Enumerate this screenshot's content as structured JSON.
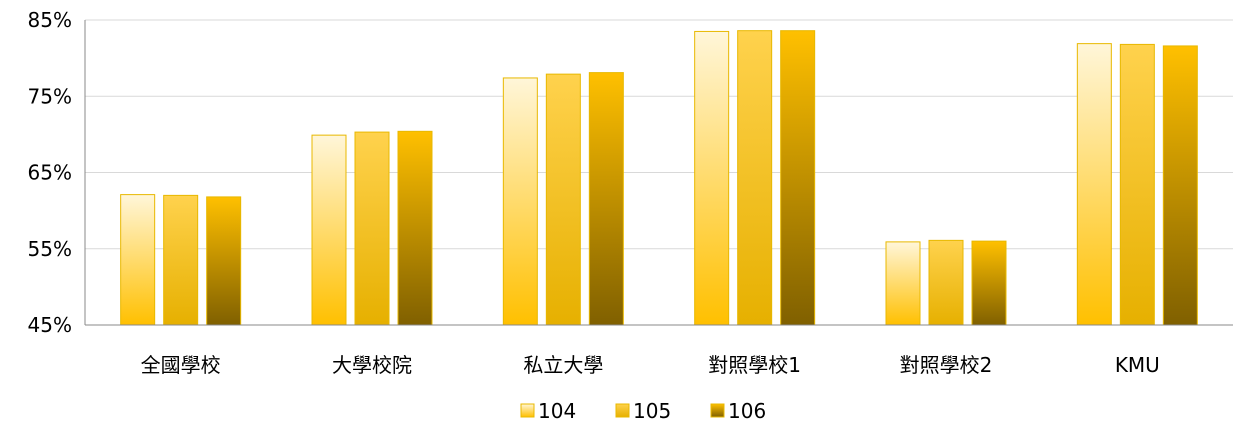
{
  "chart_data": {
    "type": "bar",
    "title": "",
    "xlabel": "",
    "ylabel": "",
    "categories": [
      "全國學校",
      "大學校院",
      "私立大學",
      "對照學校1",
      "對照學校2",
      "KMU"
    ],
    "series": [
      {
        "name": "104",
        "values": [
          62.1,
          69.9,
          77.4,
          83.5,
          55.9,
          81.9
        ]
      },
      {
        "name": "105",
        "values": [
          62.0,
          70.3,
          77.9,
          83.6,
          56.1,
          81.8
        ]
      },
      {
        "name": "106",
        "values": [
          61.8,
          70.4,
          78.1,
          83.6,
          56.0,
          81.6
        ]
      }
    ],
    "ylim": [
      45,
      85
    ],
    "yticks": [
      {
        "value": 45,
        "label": "45%"
      },
      {
        "value": 55,
        "label": "55%"
      },
      {
        "value": 65,
        "label": "65%"
      },
      {
        "value": 75,
        "label": "75%"
      },
      {
        "value": 85,
        "label": "85%"
      }
    ],
    "grid": true,
    "legend": "bottom-center",
    "colors": {
      "104": [
        "#fff6d9",
        "#ffc000"
      ],
      "105": [
        "#ffd24d",
        "#e6b000"
      ],
      "106": [
        "#ffc000",
        "#806000"
      ],
      "gridline": "#d9d9d9",
      "axis": "#888888"
    }
  }
}
